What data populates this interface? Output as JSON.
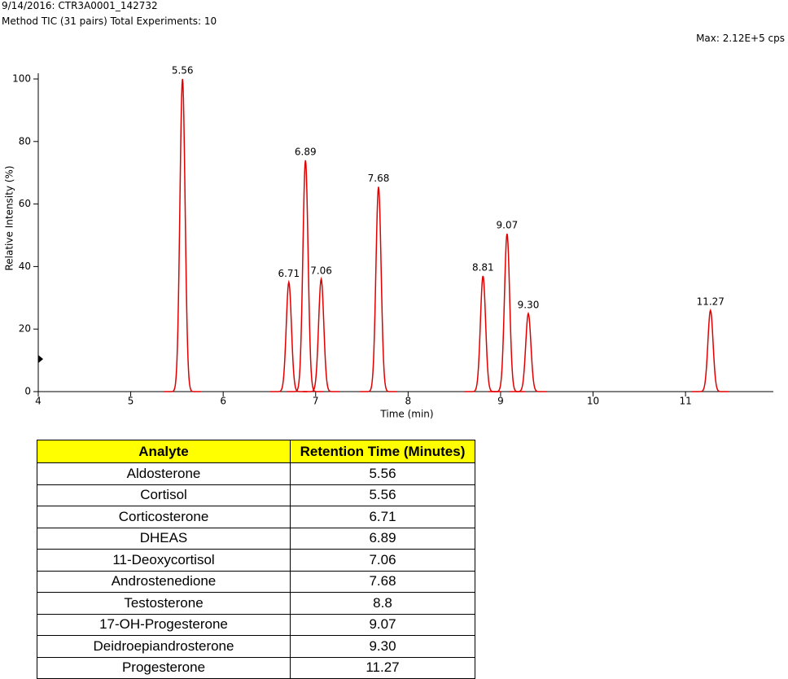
{
  "header": {
    "line1": "9/14/2016: CTR3A0001_142732",
    "line2": "Method TIC (31 pairs) Total Experiments: 10",
    "max": "Max: 2.12E+5 cps"
  },
  "chart_data": {
    "type": "chromatogram",
    "x": [
      5.56,
      6.71,
      6.89,
      7.06,
      7.68,
      8.81,
      9.07,
      9.3,
      11.27
    ],
    "values": [
      100,
      35,
      74,
      36,
      65.5,
      37,
      50.5,
      25,
      26
    ],
    "peak_labels": [
      "5.56",
      "6.71",
      "6.89",
      "7.06",
      "7.68",
      "8.81",
      "9.07",
      "9.30",
      "11.27"
    ],
    "color": "#e00000",
    "xlim": [
      4,
      11.95
    ],
    "xticks": [
      4,
      5,
      6,
      7,
      8,
      9,
      10,
      11
    ],
    "ylim": [
      0,
      100
    ],
    "yticks": [
      0,
      20,
      40,
      60,
      80,
      100
    ],
    "xlabel": "Time (min)",
    "ylabel": "Relative Intensity (%)"
  },
  "table": {
    "header": [
      "Analyte",
      "Retention Time (Minutes)"
    ],
    "rows": [
      [
        "Aldosterone",
        "5.56"
      ],
      [
        "Cortisol",
        "5.56"
      ],
      [
        "Corticosterone",
        "6.71"
      ],
      [
        "DHEAS",
        "6.89"
      ],
      [
        "11-Deoxycortisol",
        "7.06"
      ],
      [
        "Androstenedione",
        "7.68"
      ],
      [
        "Testosterone",
        "8.8"
      ],
      [
        "17-OH-Progesterone",
        "9.07"
      ],
      [
        "Deidroepiandrosterone",
        "9.30"
      ],
      [
        "Progesterone",
        "11.27"
      ]
    ]
  }
}
